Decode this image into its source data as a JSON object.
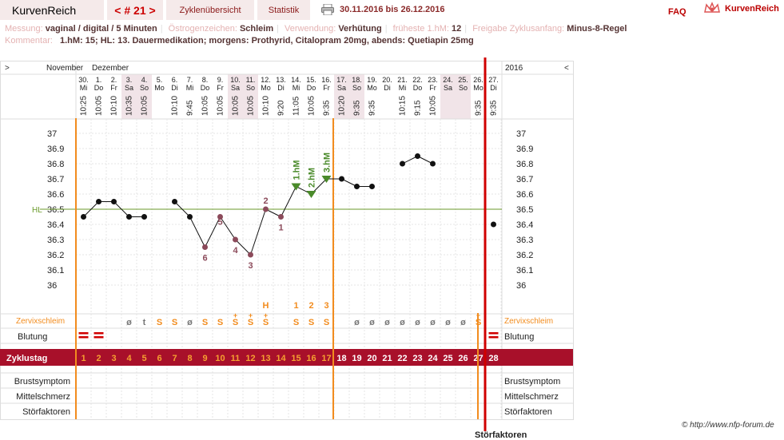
{
  "header": {
    "brand": "KurvenReich",
    "cycle": "< # 21 >",
    "tab_overview": "Zyklenübersicht",
    "tab_stats": "Statistik",
    "range": "30.11.2016 bis 26.12.2016",
    "faq": "FAQ",
    "logo_text": "KurvenReich"
  },
  "info": {
    "messung_label": "Messung:",
    "messung_value": "vaginal / digital / 5 Minuten",
    "oestro_label": "Östrogenzeichen:",
    "oestro_value": "Schleim",
    "verw_label": "Verwendung:",
    "verw_value": "Verhütung",
    "frueh_label": "früheste 1.hM:",
    "frueh_value": "12",
    "freigabe_label": "Freigabe Zyklusanfang:",
    "freigabe_value": "Minus-8-Regel",
    "komm_label": "Kommentar:",
    "komm_value": "1.hM: 15; HL: 13. Dauermedikation; morgens: Prothyrid, Citalopram 20mg, abends: Quetiapin 25mg"
  },
  "table": {
    "nav_left": ">",
    "nav_right": "<",
    "month1": "November",
    "month2": "Dezember",
    "year": "2016",
    "row_labels": {
      "zervix": "Zervixschleim",
      "blutung": "Blutung",
      "zyklustag": "Zyklustag",
      "brust": "Brustsymptom",
      "mittel": "Mittelschmerz",
      "stoer": "Störfaktoren"
    },
    "hl_label": "HL",
    "hm_labels": [
      "1.hM",
      "2.hM",
      "3.hM"
    ]
  },
  "days": [
    {
      "date": "30.",
      "wd": "Mi",
      "time": "10:25",
      "temp": 36.45,
      "cd": "1",
      "zs": "",
      "bl": "=",
      "we": false
    },
    {
      "date": "1.",
      "wd": "Do",
      "time": "10:05",
      "temp": 36.55,
      "cd": "2",
      "zs": "",
      "bl": "=",
      "we": false
    },
    {
      "date": "2.",
      "wd": "Fr",
      "time": "10:10",
      "temp": 36.55,
      "cd": "3",
      "zs": "",
      "bl": "",
      "we": false
    },
    {
      "date": "3.",
      "wd": "Sa",
      "time": "10:35",
      "temp": 36.45,
      "cd": "4",
      "zs": "ø",
      "bl": "",
      "we": true
    },
    {
      "date": "4.",
      "wd": "So",
      "time": "10:05",
      "temp": 36.45,
      "cd": "5",
      "zs": "t",
      "bl": "",
      "we": true
    },
    {
      "date": "5.",
      "wd": "Mo",
      "time": "",
      "temp": null,
      "cd": "6",
      "zs": "S",
      "bl": "",
      "we": false
    },
    {
      "date": "6.",
      "wd": "Di",
      "time": "10:10",
      "temp": 36.55,
      "cd": "7",
      "zs": "S",
      "bl": "",
      "we": false
    },
    {
      "date": "7.",
      "wd": "Mi",
      "time": "9:45",
      "temp": 36.45,
      "cd": "8",
      "zs": "ø",
      "bl": "",
      "we": false
    },
    {
      "date": "8.",
      "wd": "Do",
      "time": "10:05",
      "temp": 36.25,
      "cd": "9",
      "zs": "S",
      "bl": "",
      "we": false
    },
    {
      "date": "9.",
      "wd": "Fr",
      "time": "10:05",
      "temp": 36.45,
      "cd": "10",
      "zs": "S",
      "bl": "",
      "we": false
    },
    {
      "date": "10.",
      "wd": "Sa",
      "time": "10:05",
      "temp": 36.3,
      "cd": "11",
      "zs": "S+",
      "bl": "",
      "we": true
    },
    {
      "date": "11.",
      "wd": "So",
      "time": "10:05",
      "temp": 36.2,
      "cd": "12",
      "zs": "S+",
      "bl": "",
      "we": true
    },
    {
      "date": "12.",
      "wd": "Mo",
      "time": "10:10",
      "temp": 36.5,
      "cd": "13",
      "zs": "S+",
      "bl": "",
      "we": false
    },
    {
      "date": "13.",
      "wd": "Di",
      "time": "9:20",
      "temp": 36.45,
      "cd": "14",
      "zs": "",
      "bl": "",
      "we": false
    },
    {
      "date": "14.",
      "wd": "Mi",
      "time": "11:05",
      "temp": 36.65,
      "cd": "15",
      "zs": "S",
      "bl": "",
      "we": false
    },
    {
      "date": "15.",
      "wd": "Do",
      "time": "10:05",
      "temp": 36.6,
      "cd": "16",
      "zs": "S",
      "bl": "",
      "we": false
    },
    {
      "date": "16.",
      "wd": "Fr",
      "time": "9:35",
      "temp": 36.7,
      "cd": "17",
      "zs": "S",
      "bl": "",
      "we": false
    },
    {
      "date": "17.",
      "wd": "Sa",
      "time": "10:20",
      "temp": 36.7,
      "cd": "18",
      "zs": "",
      "bl": "",
      "we": true
    },
    {
      "date": "18.",
      "wd": "So",
      "time": "9:35",
      "temp": 36.65,
      "cd": "19",
      "zs": "ø",
      "bl": "",
      "we": true
    },
    {
      "date": "19.",
      "wd": "Mo",
      "time": "9:35",
      "temp": 36.65,
      "cd": "20",
      "zs": "ø",
      "bl": "",
      "we": false
    },
    {
      "date": "20.",
      "wd": "Di",
      "time": "",
      "temp": null,
      "cd": "21",
      "zs": "ø",
      "bl": "",
      "we": false
    },
    {
      "date": "21.",
      "wd": "Mi",
      "time": "10:15",
      "temp": 36.8,
      "cd": "22",
      "zs": "ø",
      "bl": "",
      "we": false
    },
    {
      "date": "22.",
      "wd": "Do",
      "time": "9:15",
      "temp": 36.85,
      "cd": "23",
      "zs": "ø",
      "bl": "",
      "we": false
    },
    {
      "date": "23.",
      "wd": "Fr",
      "time": "10:05",
      "temp": 36.8,
      "cd": "24",
      "zs": "ø",
      "bl": "",
      "we": false
    },
    {
      "date": "24.",
      "wd": "Sa",
      "time": "",
      "temp": null,
      "cd": "25",
      "zs": "ø",
      "bl": "",
      "we": true
    },
    {
      "date": "25.",
      "wd": "So",
      "time": "",
      "temp": null,
      "cd": "26",
      "zs": "ø",
      "bl": "",
      "we": true
    },
    {
      "date": "26.",
      "wd": "Mo",
      "time": "9:35",
      "temp": null,
      "cd": "27",
      "zs": "S+",
      "bl": "",
      "we": false
    },
    {
      "date": "27.",
      "wd": "Di",
      "time": "9:35",
      "temp": 36.4,
      "cd": "28",
      "zs": "",
      "bl": "=",
      "we": false
    }
  ],
  "low_marks": [
    {
      "day": 8,
      "n": "6"
    },
    {
      "day": 9,
      "n": "5"
    },
    {
      "day": 10,
      "n": "4"
    },
    {
      "day": 11,
      "n": "3"
    },
    {
      "day": 12,
      "n": "2"
    },
    {
      "day": 13,
      "n": "1"
    }
  ],
  "h_marks": [
    {
      "day": 12,
      "t": "H"
    },
    {
      "day": 14,
      "t": "1"
    },
    {
      "day": 15,
      "t": "2"
    },
    {
      "day": 16,
      "t": "3"
    }
  ],
  "chart_data": {
    "type": "line",
    "ylim": [
      35.9,
      37.05
    ],
    "y_ticks": [
      "37",
      "36.9",
      "36.8",
      "36.7",
      "36.6",
      "36.5",
      "36.4",
      "36.3",
      "36.2",
      "36.1",
      "36"
    ],
    "coverline": 36.5,
    "series": [
      {
        "values": [
          36.45,
          36.55,
          36.55,
          36.45,
          36.45,
          null,
          36.55,
          36.45,
          36.25,
          36.45,
          36.3,
          36.2,
          36.5,
          36.45,
          36.65,
          36.6,
          36.7,
          36.7,
          36.65,
          36.65,
          null,
          36.8,
          36.85,
          36.8,
          null,
          null,
          null,
          36.4
        ]
      }
    ]
  },
  "footer": {
    "copyright": "© http://www.nfp-forum.de",
    "cut": "Störfaktoren"
  },
  "colors": {
    "orange": "#f28c1e",
    "red": "#d00000",
    "band": "#a8102a",
    "green": "#4a8a2a",
    "pink": "#8b4a5a"
  }
}
